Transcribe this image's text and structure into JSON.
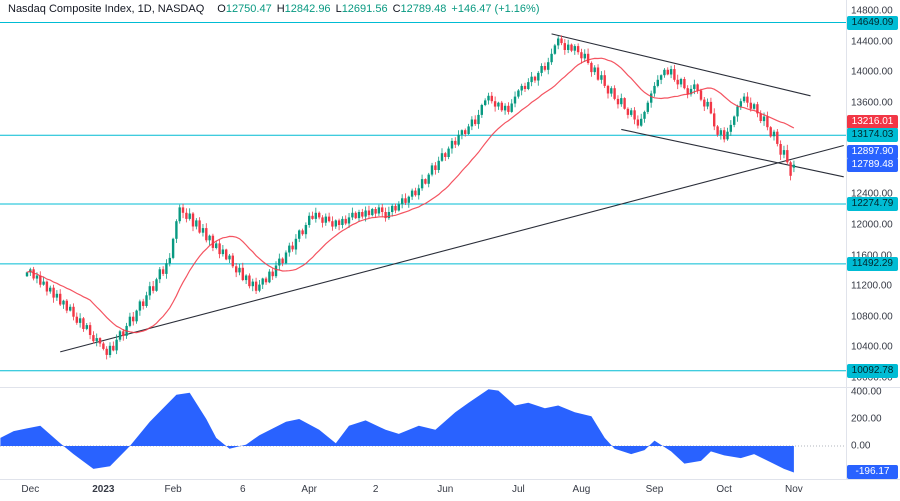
{
  "legend": {
    "title": "Nasdaq Composite Index, 1D, NASDAQ",
    "o_label": "O",
    "o": "12750.47",
    "h_label": "H",
    "h": "12842.96",
    "l_label": "L",
    "l": "12691.56",
    "c_label": "C",
    "c": "12789.48",
    "change": "+146.47 (+1.16%)"
  },
  "colors": {
    "up": "#089981",
    "down": "#f23645",
    "ma": "#f23645",
    "level": "#00bcd4",
    "blue": "#2962ff",
    "red_badge": "#f23645",
    "trend": "#2a2e39",
    "text": "#131722"
  },
  "chart_data": {
    "type": "candlestick",
    "symbol": "Nasdaq Composite Index",
    "interval": "1D",
    "exchange": "NASDAQ",
    "y_axis": {
      "ticks": [
        "14800.00",
        "14400.00",
        "14000.00",
        "13600.00",
        "12400.00",
        "12000.00",
        "11600.00",
        "11200.00",
        "10800.00",
        "10400.00",
        "10000.00"
      ],
      "visible_range": [
        9907,
        14865
      ]
    },
    "x_axis": {
      "ticks": [
        {
          "label": "Dec",
          "day": 1
        },
        {
          "label": "2023",
          "day": 23,
          "bold": true
        },
        {
          "label": "Feb",
          "day": 44
        },
        {
          "label": "6",
          "day": 65
        },
        {
          "label": "Apr",
          "day": 85
        },
        {
          "label": "2",
          "day": 105
        },
        {
          "label": "Jun",
          "day": 126
        },
        {
          "label": "Jul",
          "day": 148
        },
        {
          "label": "Aug",
          "day": 167
        },
        {
          "label": "Sep",
          "day": 189
        },
        {
          "label": "Oct",
          "day": 210
        },
        {
          "label": "Nov",
          "day": 231
        }
      ]
    },
    "first_open": 11330,
    "closes": [
      11380,
      11420,
      11300,
      11340,
      11220,
      11260,
      11130,
      11180,
      11050,
      11100,
      10960,
      11010,
      10880,
      10930,
      10800,
      10720,
      10780,
      10640,
      10690,
      10560,
      10480,
      10520,
      10450,
      10380,
      10300,
      10420,
      10360,
      10500,
      10610,
      10550,
      10680,
      10800,
      10740,
      10880,
      11000,
      10940,
      11080,
      11200,
      11140,
      11290,
      11420,
      11360,
      11500,
      11570,
      11820,
      12050,
      12230,
      12160,
      12080,
      12150,
      11980,
      12060,
      11900,
      11960,
      11800,
      11860,
      11700,
      11760,
      11620,
      11680,
      11550,
      11600,
      11460,
      11380,
      11440,
      11280,
      11340,
      11200,
      11260,
      11140,
      11220,
      11300,
      11250,
      11390,
      11330,
      11470,
      11560,
      11500,
      11640,
      11730,
      11680,
      11820,
      11930,
      11880,
      12000,
      12120,
      12080,
      12160,
      12100,
      12030,
      12110,
      12050,
      11980,
      12060,
      12000,
      12080,
      12020,
      12100,
      12160,
      12090,
      12170,
      12110,
      12190,
      12130,
      12210,
      12150,
      12230,
      12170,
      12090,
      12170,
      12250,
      12190,
      12270,
      12350,
      12290,
      12370,
      12450,
      12390,
      12480,
      12600,
      12540,
      12660,
      12780,
      12720,
      12840,
      12940,
      12890,
      13000,
      13100,
      13050,
      13180,
      13240,
      13190,
      13290,
      13380,
      13320,
      13440,
      13570,
      13630,
      13690,
      13620,
      13550,
      13600,
      13500,
      13560,
      13480,
      13590,
      13680,
      13760,
      13820,
      13780,
      13870,
      13940,
      13890,
      13990,
      14080,
      14030,
      14130,
      14240,
      14350,
      14440,
      14380,
      14290,
      14360,
      14280,
      14340,
      14260,
      14180,
      14240,
      14120,
      14000,
      14060,
      13900,
      13960,
      13820,
      13720,
      13790,
      13650,
      13580,
      13660,
      13520,
      13440,
      13500,
      13380,
      13300,
      13390,
      13480,
      13600,
      13720,
      13820,
      13900,
      13960,
      14030,
      13970,
      14040,
      13900,
      13840,
      13910,
      13790,
      13710,
      13780,
      13840,
      13760,
      13640,
      13550,
      13610,
      13460,
      13290,
      13180,
      13240,
      13120,
      13220,
      13310,
      13420,
      13550,
      13620,
      13680,
      13600,
      13520,
      13580,
      13460,
      13360,
      13420,
      13280,
      13160,
      13220,
      13060,
      12920,
      12980,
      12820,
      12643,
      12789.48
    ],
    "last_candle": {
      "open": 12750.47,
      "high": 12842.96,
      "low": 12691.56,
      "close": 12789.48
    },
    "ma": {
      "period": 20,
      "last_value": 13216.01
    },
    "levels": [
      14649.09,
      13174.03,
      12274.79,
      11492.29,
      10092.78
    ],
    "trend_lines": [
      {
        "from": [
          10,
          10340
        ],
        "to": [
          246,
          13040
        ]
      },
      {
        "from": [
          158,
          14500
        ],
        "to": [
          236,
          13690
        ]
      },
      {
        "from": [
          179,
          13250
        ],
        "to": [
          246,
          12630
        ]
      }
    ],
    "price_labels": [
      {
        "text": "14649.09",
        "value": 14649.09,
        "type": "level"
      },
      {
        "text": "13216.01",
        "value": 13216.01,
        "type": "red"
      },
      {
        "text": "13174.03",
        "value": 13174.03,
        "type": "level"
      },
      {
        "text": "12897.90",
        "value": 12897.9,
        "type": "blue"
      },
      {
        "text": "12789.48",
        "value": 12789.48,
        "type": "blue"
      },
      {
        "text": "12274.79",
        "value": 12274.79,
        "type": "level"
      },
      {
        "text": "11492.29",
        "value": 11492.29,
        "type": "level"
      },
      {
        "text": "10092.78",
        "value": 10092.78,
        "type": "level"
      }
    ],
    "indicator": {
      "ticks": [
        "400.00",
        "200.00",
        "0.00"
      ],
      "label": {
        "text": "-196.17",
        "value": -196.17,
        "type": "blue"
      },
      "points": [
        [
          -8,
          60
        ],
        [
          -4,
          110
        ],
        [
          0,
          130
        ],
        [
          4,
          150
        ],
        [
          10,
          20
        ],
        [
          14,
          -60
        ],
        [
          20,
          -170
        ],
        [
          25,
          -150
        ],
        [
          31,
          0
        ],
        [
          37,
          180
        ],
        [
          45,
          380
        ],
        [
          49,
          395
        ],
        [
          54,
          200
        ],
        [
          57,
          60
        ],
        [
          61,
          -20
        ],
        [
          66,
          10
        ],
        [
          70,
          80
        ],
        [
          78,
          180
        ],
        [
          82,
          200
        ],
        [
          88,
          120
        ],
        [
          93,
          20
        ],
        [
          97,
          150
        ],
        [
          102,
          190
        ],
        [
          108,
          120
        ],
        [
          112,
          90
        ],
        [
          118,
          150
        ],
        [
          123,
          120
        ],
        [
          129,
          250
        ],
        [
          133,
          320
        ],
        [
          139,
          420
        ],
        [
          142,
          410
        ],
        [
          147,
          300
        ],
        [
          151,
          320
        ],
        [
          156,
          280
        ],
        [
          160,
          300
        ],
        [
          165,
          250
        ],
        [
          170,
          220
        ],
        [
          174,
          60
        ],
        [
          177,
          -20
        ],
        [
          182,
          -60
        ],
        [
          186,
          -30
        ],
        [
          189,
          40
        ],
        [
          194,
          -40
        ],
        [
          198,
          -130
        ],
        [
          203,
          -110
        ],
        [
          206,
          -40
        ],
        [
          210,
          -70
        ],
        [
          215,
          -90
        ],
        [
          219,
          -60
        ],
        [
          224,
          -120
        ],
        [
          228,
          -170
        ],
        [
          231,
          -196.17
        ]
      ]
    }
  }
}
